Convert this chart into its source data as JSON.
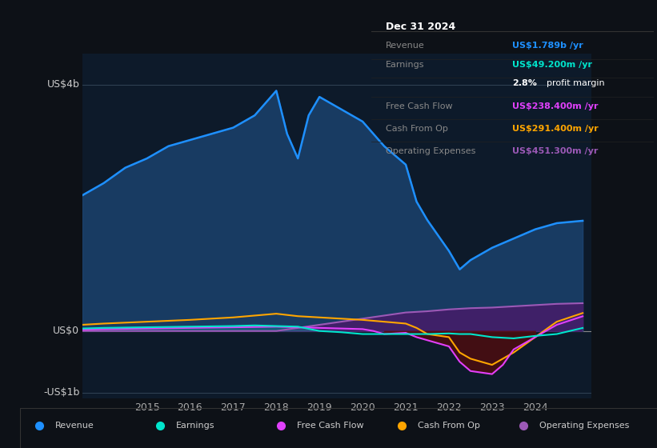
{
  "bg_color": "#0d1117",
  "plot_bg_color": "#0d1a2a",
  "title_box_bg": "#0a0a0a",
  "ylabel_top": "US$4b",
  "ylabel_zero": "US$0",
  "ylabel_bottom": "-US$1b",
  "years_ticks": [
    2015,
    2016,
    2017,
    2018,
    2019,
    2020,
    2021,
    2022,
    2023,
    2024
  ],
  "xlim": [
    2013.5,
    2025.3
  ],
  "ylim": [
    -1.1,
    4.5
  ],
  "info_box": {
    "title": "Dec 31 2024",
    "rows": [
      {
        "label": "Revenue",
        "value": "US$1.789b /yr",
        "value_color": "#1e90ff"
      },
      {
        "label": "Earnings",
        "value": "US$49.200m /yr",
        "value_color": "#00e5cc"
      },
      {
        "label": "",
        "value": "2.8% profit margin",
        "value_color": "#ffffff",
        "bold_part": "2.8%"
      },
      {
        "label": "Free Cash Flow",
        "value": "US$238.400m /yr",
        "value_color": "#e040fb"
      },
      {
        "label": "Cash From Op",
        "value": "US$291.400m /yr",
        "value_color": "#ffa500"
      },
      {
        "label": "Operating Expenses",
        "value": "US$451.300m /yr",
        "value_color": "#9b59b6"
      }
    ]
  },
  "legend": [
    {
      "label": "Revenue",
      "color": "#1e90ff"
    },
    {
      "label": "Earnings",
      "color": "#00e5cc"
    },
    {
      "label": "Free Cash Flow",
      "color": "#e040fb"
    },
    {
      "label": "Cash From Op",
      "color": "#ffa500"
    },
    {
      "label": "Operating Expenses",
      "color": "#9b59b6"
    }
  ],
  "revenue": {
    "x": [
      2013.5,
      2014,
      2014.5,
      2015,
      2015.5,
      2016,
      2016.5,
      2017,
      2017.5,
      2018.0,
      2018.25,
      2018.5,
      2018.75,
      2019,
      2019.5,
      2020,
      2020.5,
      2021,
      2021.25,
      2021.5,
      2022,
      2022.25,
      2022.5,
      2023,
      2023.5,
      2024,
      2024.5,
      2025.1
    ],
    "y": [
      2.2,
      2.4,
      2.65,
      2.8,
      3.0,
      3.1,
      3.2,
      3.3,
      3.5,
      3.9,
      3.2,
      2.8,
      3.5,
      3.8,
      3.6,
      3.4,
      3.0,
      2.7,
      2.1,
      1.8,
      1.3,
      1.0,
      1.15,
      1.35,
      1.5,
      1.65,
      1.75,
      1.789
    ],
    "color": "#1e90ff",
    "fill_color": "#1e4a7a",
    "alpha": 0.7
  },
  "earnings": {
    "x": [
      2013.5,
      2014,
      2015,
      2016,
      2017,
      2017.5,
      2018,
      2018.5,
      2019,
      2019.5,
      2020,
      2020.5,
      2021,
      2021.5,
      2022,
      2022.25,
      2022.5,
      2023,
      2023.5,
      2024,
      2024.5,
      2025.1
    ],
    "y": [
      0.04,
      0.05,
      0.06,
      0.07,
      0.08,
      0.09,
      0.08,
      0.07,
      0.0,
      -0.02,
      -0.05,
      -0.05,
      -0.05,
      -0.05,
      -0.04,
      -0.05,
      -0.05,
      -0.1,
      -0.12,
      -0.08,
      -0.05,
      0.049
    ],
    "color": "#00e5cc",
    "alpha": 1.0
  },
  "free_cash_flow": {
    "x": [
      2013.5,
      2014,
      2015,
      2016,
      2017,
      2018,
      2018.5,
      2019,
      2019.5,
      2020,
      2020.25,
      2020.5,
      2021,
      2021.25,
      2021.5,
      2022,
      2022.25,
      2022.5,
      2023,
      2023.25,
      2023.5,
      2024,
      2024.5,
      2025.1
    ],
    "y": [
      0.02,
      0.03,
      0.04,
      0.05,
      0.06,
      0.07,
      0.06,
      0.05,
      0.04,
      0.03,
      0.0,
      -0.05,
      -0.03,
      -0.1,
      -0.15,
      -0.25,
      -0.5,
      -0.65,
      -0.7,
      -0.55,
      -0.3,
      -0.1,
      0.1,
      0.238
    ],
    "color": "#e040fb",
    "alpha": 1.0
  },
  "cash_from_op": {
    "x": [
      2013.5,
      2014,
      2015,
      2016,
      2017,
      2017.5,
      2018,
      2018.5,
      2019,
      2019.5,
      2020,
      2020.5,
      2021,
      2021.25,
      2021.5,
      2022,
      2022.25,
      2022.5,
      2023,
      2023.5,
      2024,
      2024.5,
      2025.1
    ],
    "y": [
      0.1,
      0.12,
      0.15,
      0.18,
      0.22,
      0.25,
      0.28,
      0.24,
      0.22,
      0.2,
      0.18,
      0.15,
      0.12,
      0.05,
      -0.05,
      -0.1,
      -0.35,
      -0.45,
      -0.55,
      -0.35,
      -0.1,
      0.15,
      0.291
    ],
    "color": "#ffa500",
    "alpha": 1.0
  },
  "operating_expenses": {
    "x": [
      2013.5,
      2014,
      2015,
      2016,
      2017,
      2018,
      2018.5,
      2019,
      2019.5,
      2020,
      2020.5,
      2021,
      2021.5,
      2022,
      2022.5,
      2023,
      2023.5,
      2024,
      2024.5,
      2025.1
    ],
    "y": [
      0.0,
      0.0,
      0.0,
      0.0,
      0.0,
      0.0,
      0.05,
      0.1,
      0.15,
      0.2,
      0.25,
      0.3,
      0.32,
      0.35,
      0.37,
      0.38,
      0.4,
      0.42,
      0.44,
      0.451
    ],
    "color": "#9b59b6",
    "fill_color": "#4a1a6a",
    "alpha": 0.8
  }
}
